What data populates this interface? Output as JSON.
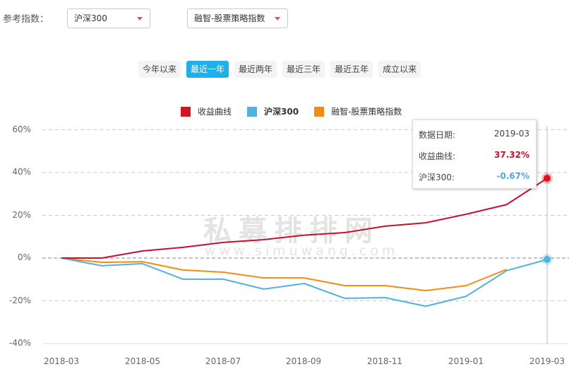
{
  "filters": {
    "label": "参考指数：",
    "select1": {
      "value": "沪深300"
    },
    "select2": {
      "value": "融智-股票策略指数"
    }
  },
  "ranges": [
    {
      "label": "今年以来",
      "active": false
    },
    {
      "label": "最近一年",
      "active": true
    },
    {
      "label": "最近两年",
      "active": false
    },
    {
      "label": "最近三年",
      "active": false
    },
    {
      "label": "最近五年",
      "active": false
    },
    {
      "label": "成立以来",
      "active": false
    }
  ],
  "legend": [
    {
      "label": "收益曲线",
      "color": "#d7141f"
    },
    {
      "label": "沪深300",
      "color": "#4fb3e0"
    },
    {
      "label": "融智-股票策略指数",
      "color": "#f28c14"
    }
  ],
  "tooltip": {
    "date_label": "数据日期:",
    "date_value": "2019-03",
    "return_label": "收益曲线:",
    "return_value": "37.32%",
    "hs300_label": "沪深300:",
    "hs300_value": "-0.67%"
  },
  "watermark": {
    "cn": "私募排排网",
    "en": "www.simuwang.com"
  },
  "chart_data": {
    "type": "line",
    "title": "",
    "xlabel": "",
    "ylabel": "",
    "x": [
      "2018-03",
      "2018-04",
      "2018-05",
      "2018-06",
      "2018-07",
      "2018-08",
      "2018-09",
      "2018-10",
      "2018-11",
      "2018-12",
      "2019-01",
      "2019-02",
      "2019-03"
    ],
    "x_tick_labels": [
      "2018-03",
      "2018-05",
      "2018-07",
      "2018-09",
      "2018-11",
      "2019-01",
      "2019-03"
    ],
    "y_tick_labels": [
      "60%",
      "40%",
      "20%",
      "0%",
      "-20%",
      "-40%"
    ],
    "y_ticks": [
      60,
      40,
      20,
      0,
      -20,
      -40
    ],
    "ylim": [
      -40,
      60
    ],
    "grid": true,
    "legend_position": "top",
    "series": [
      {
        "name": "收益曲线",
        "color": "#c8102e",
        "values": [
          0,
          0,
          3.3,
          5.0,
          7.3,
          8.6,
          10.7,
          11.9,
          14.9,
          16.5,
          20.5,
          25.0,
          37.32
        ]
      },
      {
        "name": "沪深300",
        "color": "#4fb3e0",
        "values": [
          0,
          -3.6,
          -2.6,
          -9.9,
          -9.9,
          -14.5,
          -11.9,
          -18.8,
          -18.5,
          -22.5,
          -17.9,
          -5.9,
          -0.67
        ]
      },
      {
        "name": "融智-股票策略指数",
        "color": "#f28c14",
        "values": [
          0,
          -2.0,
          -1.7,
          -5.6,
          -6.6,
          -9.3,
          -9.3,
          -12.9,
          -12.9,
          -15.2,
          -12.9,
          -5.3,
          null
        ]
      }
    ],
    "highlight": {
      "x": "2019-03",
      "收益曲线": 37.32,
      "沪深300": -0.67
    }
  }
}
